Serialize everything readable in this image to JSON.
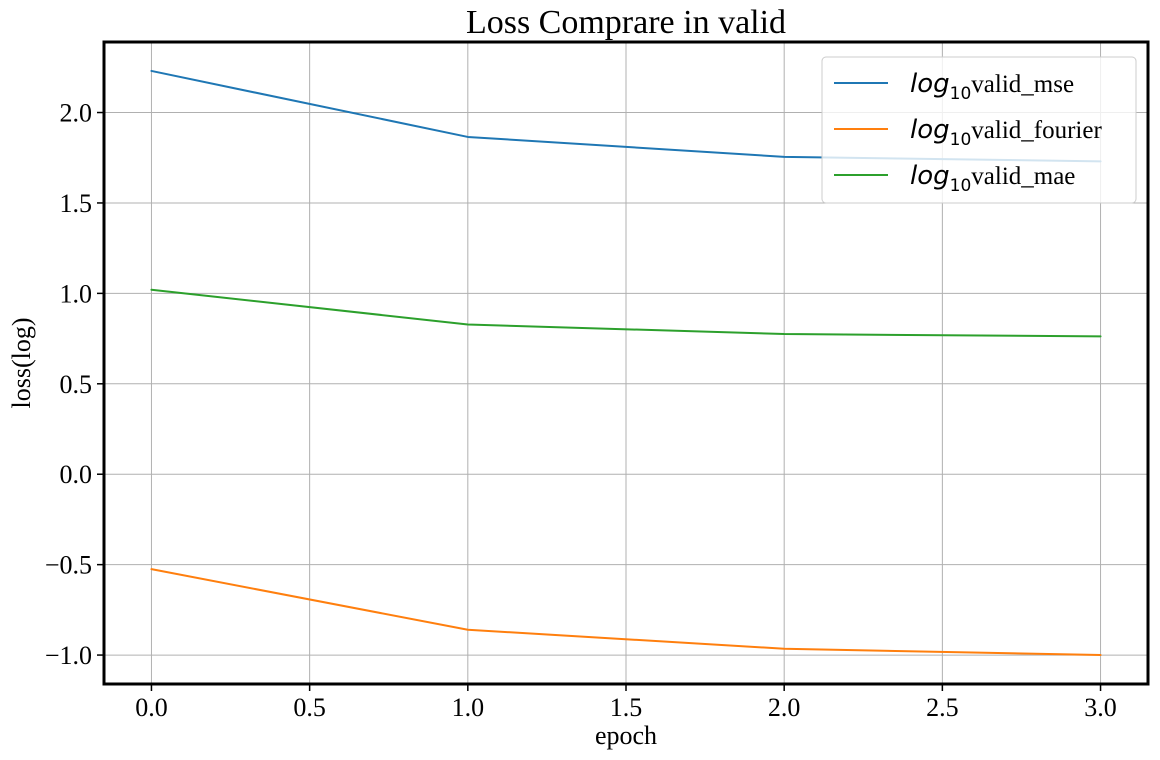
{
  "chart_data": {
    "type": "line",
    "title": "Loss Comprare in valid",
    "xlabel": "epoch",
    "ylabel": "loss(log)",
    "xlim": [
      -0.15,
      3.15
    ],
    "ylim": [
      -1.16,
      2.39
    ],
    "x_ticks": [
      0.0,
      0.5,
      1.0,
      1.5,
      2.0,
      2.5,
      3.0
    ],
    "x_tick_labels": [
      "0.0",
      "0.5",
      "1.0",
      "1.5",
      "2.0",
      "2.5",
      "3.0"
    ],
    "y_ticks": [
      -1.0,
      -0.5,
      0.0,
      0.5,
      1.0,
      1.5,
      2.0
    ],
    "y_tick_labels": [
      "−1.0",
      "−0.5",
      "0.0",
      "0.5",
      "1.0",
      "1.5",
      "2.0"
    ],
    "grid": true,
    "legend_position": "top-right",
    "x": [
      0,
      1,
      2,
      3
    ],
    "series": [
      {
        "name_math": "log",
        "name_sub": "10",
        "name": "valid_mse",
        "color": "#1f77b4",
        "values": [
          2.23,
          1.865,
          1.755,
          1.73
        ]
      },
      {
        "name_math": "log",
        "name_sub": "10",
        "name": "valid_fourier",
        "color": "#ff7f0e",
        "values": [
          -0.525,
          -0.86,
          -0.965,
          -1.0
        ]
      },
      {
        "name_math": "log",
        "name_sub": "10",
        "name": "valid_mae",
        "color": "#2ca02c",
        "values": [
          1.02,
          0.828,
          0.775,
          0.762
        ]
      }
    ]
  }
}
